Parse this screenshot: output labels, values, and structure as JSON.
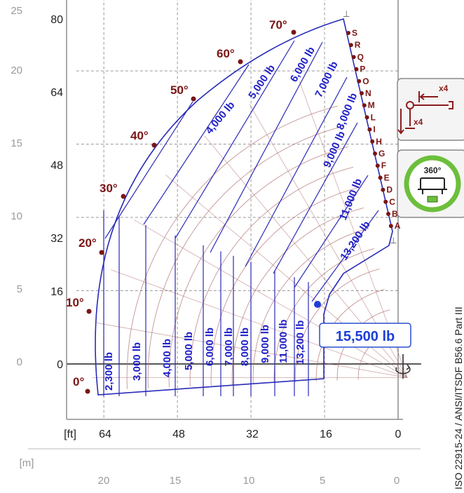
{
  "chart_data": {
    "type": "load-chart",
    "title": "",
    "axis_left_m": {
      "label": "",
      "ticks": [
        "0",
        "5",
        "10",
        "15",
        "20",
        "25"
      ]
    },
    "axis_left_ft": {
      "label": "",
      "ticks": [
        "0",
        "16",
        "32",
        "48",
        "64",
        "80"
      ]
    },
    "axis_bottom_ft": {
      "unit": "[ft]",
      "ticks": [
        "64",
        "48",
        "32",
        "16",
        "0"
      ]
    },
    "axis_bottom_m": {
      "unit": "[m]",
      "ticks": [
        "20",
        "15",
        "10",
        "5",
        "0"
      ]
    },
    "angle_labels": [
      "0°",
      "10°",
      "20°",
      "30°",
      "40°",
      "50°",
      "60°",
      "70°"
    ],
    "extension_letters": [
      "S",
      "R",
      "Q",
      "P",
      "O",
      "N",
      "M",
      "L",
      "I",
      "H",
      "G",
      "F",
      "E",
      "D",
      "C",
      "B",
      "A"
    ],
    "load_zones_upper": [
      "4,000 lb",
      "5,000 lb",
      "6,000 lb",
      "7,000 lb",
      "8,000 lb",
      "9,000 lb",
      "11,000 lb",
      "13,200 lb"
    ],
    "load_zones_lower": [
      "2,300 lb",
      "3,000 lb",
      "4,000 lb",
      "5,000 lb",
      "6,000 lb",
      "7,000 lb",
      "8,000 lb",
      "9,000 lb",
      "11,000 lb",
      "13,200 lb"
    ],
    "max_load": "15,500 lb",
    "outrigger_text": [
      "x4",
      "x4"
    ],
    "rotation_text": "360°",
    "standard_text": "ISO 22915-24  /  ANSI/ITSDF B56.6 Part III",
    "colors": {
      "zone_line": "#2a2ab8",
      "arc_line": "#b07070",
      "angle_text": "#7a1515",
      "grid": "#9a9a9a",
      "axis_text": "#222222",
      "axis_text_m": "#9a9a9a",
      "rotation_ring": "#6cbf3c",
      "max_point": "#1c3fd8"
    }
  }
}
